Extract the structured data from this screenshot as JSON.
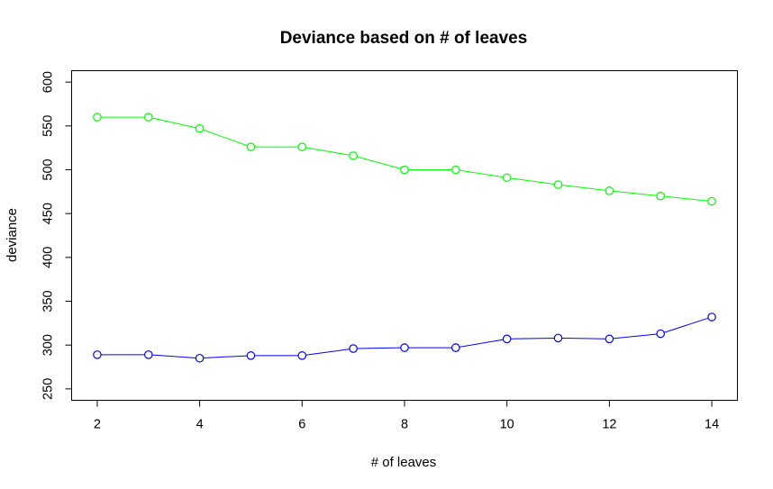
{
  "chart_data": {
    "type": "line",
    "title": "Deviance based on # of leaves",
    "xlabel": "# of leaves",
    "ylabel": "deviance",
    "x": [
      2,
      3,
      4,
      5,
      6,
      7,
      8,
      9,
      10,
      11,
      12,
      13,
      14
    ],
    "xlim": [
      1.5,
      14.5
    ],
    "ylim": [
      237,
      613
    ],
    "xticks": [
      2,
      4,
      6,
      8,
      10,
      12,
      14
    ],
    "yticks": [
      250,
      300,
      350,
      400,
      450,
      500,
      550,
      600
    ],
    "grid": false,
    "series": [
      {
        "color": "#00ff00",
        "values": [
          560,
          560,
          547,
          526,
          526,
          516,
          500,
          500,
          491,
          483,
          476,
          470,
          464
        ]
      },
      {
        "color": "#0000ff",
        "values": [
          289,
          289,
          285,
          288,
          288,
          296,
          297,
          297,
          307,
          308,
          307,
          313,
          332
        ]
      }
    ]
  }
}
